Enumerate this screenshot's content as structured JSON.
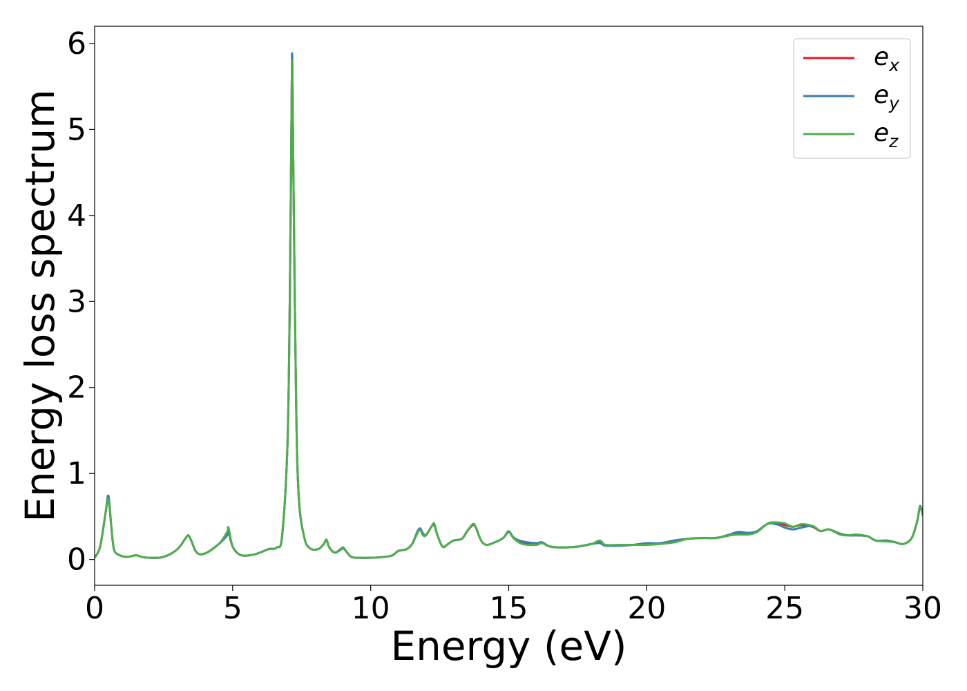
{
  "chart_data": {
    "type": "line",
    "title": "",
    "xlabel": "Energy (eV)",
    "ylabel": "Energy loss spectrum",
    "xlim": [
      0,
      30
    ],
    "ylim": [
      -0.3,
      6.2
    ],
    "xticks": [
      0,
      5,
      10,
      15,
      20,
      25,
      30
    ],
    "yticks": [
      0,
      1,
      2,
      3,
      4,
      5,
      6
    ],
    "grid": false,
    "legend_position": "top-right",
    "legend": [
      {
        "base": "e",
        "sub": "x",
        "color": "#e41a1c"
      },
      {
        "base": "e",
        "sub": "y",
        "color": "#377eb8"
      },
      {
        "base": "e",
        "sub": "z",
        "color": "#4daf4a"
      }
    ],
    "series": [
      {
        "name": "e_x",
        "color": "#e41a1c",
        "x": [
          0,
          0.2,
          0.4,
          0.5,
          0.6,
          0.7,
          0.9,
          1.2,
          1.5,
          1.7,
          2.0,
          2.5,
          3.0,
          3.3,
          3.4,
          3.5,
          3.7,
          4.0,
          4.5,
          4.8,
          4.85,
          5.0,
          5.3,
          5.8,
          6.3,
          6.6,
          6.8,
          7.0,
          7.1,
          7.15,
          7.2,
          7.3,
          7.4,
          7.6,
          7.8,
          8.1,
          8.3,
          8.4,
          8.5,
          8.7,
          8.9,
          9.0,
          9.1,
          9.3,
          9.6,
          10.0,
          10.5,
          10.8,
          11.0,
          11.3,
          11.5,
          11.7,
          11.8,
          11.9,
          12.0,
          12.2,
          12.3,
          12.4,
          12.6,
          12.8,
          13.0,
          13.3,
          13.5,
          13.7,
          13.8,
          14.0,
          14.2,
          14.5,
          14.8,
          15.0,
          15.2,
          15.5,
          16.0,
          16.2,
          16.5,
          17.0,
          17.5,
          18.0,
          18.3,
          18.5,
          19.0,
          19.5,
          20.0,
          20.5,
          21.0,
          21.5,
          22.0,
          22.5,
          23.0,
          23.3,
          23.7,
          24.0,
          24.3,
          24.5,
          24.8,
          25.0,
          25.3,
          25.6,
          26.0,
          26.3,
          26.6,
          27.0,
          27.3,
          27.6,
          28.0,
          28.3,
          28.7,
          29.0,
          29.3,
          29.6,
          29.8,
          29.9,
          30.0
        ],
        "values": [
          0.02,
          0.15,
          0.55,
          0.73,
          0.4,
          0.12,
          0.05,
          0.03,
          0.05,
          0.03,
          0.02,
          0.03,
          0.12,
          0.25,
          0.28,
          0.22,
          0.08,
          0.07,
          0.18,
          0.3,
          0.36,
          0.15,
          0.05,
          0.06,
          0.12,
          0.14,
          0.3,
          1.5,
          4.0,
          5.85,
          4.5,
          1.8,
          0.7,
          0.25,
          0.13,
          0.12,
          0.18,
          0.23,
          0.14,
          0.08,
          0.12,
          0.14,
          0.1,
          0.03,
          0.02,
          0.02,
          0.03,
          0.05,
          0.1,
          0.12,
          0.18,
          0.32,
          0.35,
          0.3,
          0.28,
          0.38,
          0.4,
          0.3,
          0.15,
          0.18,
          0.22,
          0.24,
          0.33,
          0.4,
          0.38,
          0.22,
          0.17,
          0.2,
          0.25,
          0.32,
          0.24,
          0.2,
          0.18,
          0.2,
          0.15,
          0.14,
          0.15,
          0.18,
          0.2,
          0.17,
          0.16,
          0.17,
          0.18,
          0.19,
          0.22,
          0.24,
          0.25,
          0.25,
          0.28,
          0.3,
          0.3,
          0.33,
          0.4,
          0.43,
          0.42,
          0.4,
          0.38,
          0.4,
          0.38,
          0.33,
          0.35,
          0.3,
          0.28,
          0.28,
          0.27,
          0.22,
          0.22,
          0.2,
          0.18,
          0.25,
          0.45,
          0.62,
          0.52
        ]
      },
      {
        "name": "e_y",
        "color": "#377eb8",
        "x": [
          0,
          0.2,
          0.4,
          0.5,
          0.6,
          0.7,
          0.9,
          1.2,
          1.5,
          1.7,
          2.0,
          2.5,
          3.0,
          3.3,
          3.4,
          3.5,
          3.7,
          4.0,
          4.5,
          4.8,
          4.85,
          5.0,
          5.3,
          5.8,
          6.3,
          6.6,
          6.8,
          7.0,
          7.1,
          7.15,
          7.2,
          7.3,
          7.4,
          7.6,
          7.8,
          8.1,
          8.3,
          8.4,
          8.5,
          8.7,
          8.9,
          9.0,
          9.1,
          9.3,
          9.6,
          10.0,
          10.5,
          10.8,
          11.0,
          11.3,
          11.5,
          11.7,
          11.8,
          11.9,
          12.0,
          12.2,
          12.3,
          12.4,
          12.6,
          12.8,
          13.0,
          13.3,
          13.5,
          13.7,
          13.8,
          14.0,
          14.2,
          14.5,
          14.8,
          15.0,
          15.2,
          15.5,
          16.0,
          16.2,
          16.5,
          17.0,
          17.5,
          18.0,
          18.3,
          18.5,
          19.0,
          19.5,
          20.0,
          20.5,
          21.0,
          21.5,
          22.0,
          22.5,
          23.0,
          23.3,
          23.7,
          24.0,
          24.3,
          24.5,
          24.8,
          25.0,
          25.3,
          25.6,
          26.0,
          26.3,
          26.6,
          27.0,
          27.3,
          27.6,
          28.0,
          28.3,
          28.7,
          29.0,
          29.3,
          29.6,
          29.8,
          29.9,
          30.0
        ],
        "values": [
          0.02,
          0.15,
          0.55,
          0.74,
          0.4,
          0.12,
          0.05,
          0.03,
          0.05,
          0.03,
          0.02,
          0.03,
          0.12,
          0.25,
          0.28,
          0.22,
          0.08,
          0.07,
          0.18,
          0.28,
          0.32,
          0.15,
          0.05,
          0.06,
          0.12,
          0.14,
          0.3,
          1.5,
          4.0,
          5.88,
          4.5,
          1.8,
          0.7,
          0.25,
          0.13,
          0.12,
          0.18,
          0.22,
          0.14,
          0.08,
          0.11,
          0.13,
          0.1,
          0.03,
          0.02,
          0.02,
          0.03,
          0.05,
          0.1,
          0.12,
          0.18,
          0.33,
          0.36,
          0.3,
          0.28,
          0.38,
          0.4,
          0.3,
          0.15,
          0.18,
          0.22,
          0.24,
          0.33,
          0.41,
          0.38,
          0.22,
          0.17,
          0.2,
          0.25,
          0.32,
          0.25,
          0.21,
          0.19,
          0.2,
          0.15,
          0.14,
          0.15,
          0.18,
          0.19,
          0.16,
          0.16,
          0.17,
          0.19,
          0.19,
          0.22,
          0.24,
          0.25,
          0.25,
          0.29,
          0.32,
          0.31,
          0.33,
          0.4,
          0.42,
          0.4,
          0.37,
          0.35,
          0.37,
          0.39,
          0.33,
          0.35,
          0.3,
          0.28,
          0.28,
          0.27,
          0.22,
          0.22,
          0.2,
          0.18,
          0.25,
          0.45,
          0.62,
          0.52
        ]
      },
      {
        "name": "e_z",
        "color": "#4daf4a",
        "x": [
          0,
          0.2,
          0.4,
          0.5,
          0.6,
          0.7,
          0.9,
          1.2,
          1.5,
          1.7,
          2.0,
          2.5,
          3.0,
          3.3,
          3.4,
          3.5,
          3.7,
          4.0,
          4.5,
          4.8,
          4.85,
          5.0,
          5.3,
          5.8,
          6.3,
          6.6,
          6.8,
          7.0,
          7.1,
          7.15,
          7.2,
          7.3,
          7.4,
          7.6,
          7.8,
          8.1,
          8.3,
          8.4,
          8.5,
          8.7,
          8.9,
          9.0,
          9.1,
          9.3,
          9.6,
          10.0,
          10.5,
          10.8,
          11.0,
          11.3,
          11.5,
          11.7,
          11.8,
          11.9,
          12.0,
          12.2,
          12.3,
          12.4,
          12.6,
          12.8,
          13.0,
          13.3,
          13.5,
          13.7,
          13.8,
          14.0,
          14.2,
          14.5,
          14.8,
          15.0,
          15.2,
          15.5,
          16.0,
          16.2,
          16.5,
          17.0,
          17.5,
          18.0,
          18.3,
          18.5,
          19.0,
          19.5,
          20.0,
          20.5,
          21.0,
          21.5,
          22.0,
          22.5,
          23.0,
          23.3,
          23.7,
          24.0,
          24.3,
          24.5,
          24.8,
          25.0,
          25.3,
          25.6,
          26.0,
          26.3,
          26.6,
          27.0,
          27.3,
          27.6,
          28.0,
          28.3,
          28.7,
          29.0,
          29.3,
          29.6,
          29.8,
          29.9,
          30.0
        ],
        "values": [
          0.02,
          0.15,
          0.55,
          0.7,
          0.4,
          0.12,
          0.05,
          0.03,
          0.05,
          0.03,
          0.02,
          0.03,
          0.12,
          0.25,
          0.28,
          0.22,
          0.08,
          0.07,
          0.18,
          0.32,
          0.37,
          0.15,
          0.05,
          0.06,
          0.12,
          0.14,
          0.3,
          1.5,
          4.0,
          5.8,
          4.5,
          1.8,
          0.7,
          0.25,
          0.13,
          0.12,
          0.18,
          0.23,
          0.14,
          0.08,
          0.12,
          0.14,
          0.1,
          0.03,
          0.02,
          0.02,
          0.03,
          0.05,
          0.1,
          0.12,
          0.18,
          0.31,
          0.34,
          0.28,
          0.28,
          0.38,
          0.42,
          0.3,
          0.15,
          0.18,
          0.22,
          0.24,
          0.33,
          0.41,
          0.38,
          0.22,
          0.17,
          0.2,
          0.25,
          0.33,
          0.24,
          0.18,
          0.17,
          0.19,
          0.15,
          0.14,
          0.15,
          0.18,
          0.22,
          0.17,
          0.17,
          0.17,
          0.17,
          0.18,
          0.2,
          0.24,
          0.25,
          0.25,
          0.28,
          0.29,
          0.29,
          0.32,
          0.4,
          0.43,
          0.43,
          0.42,
          0.38,
          0.41,
          0.39,
          0.33,
          0.35,
          0.29,
          0.28,
          0.29,
          0.27,
          0.22,
          0.21,
          0.2,
          0.18,
          0.25,
          0.45,
          0.61,
          0.51
        ]
      }
    ]
  }
}
